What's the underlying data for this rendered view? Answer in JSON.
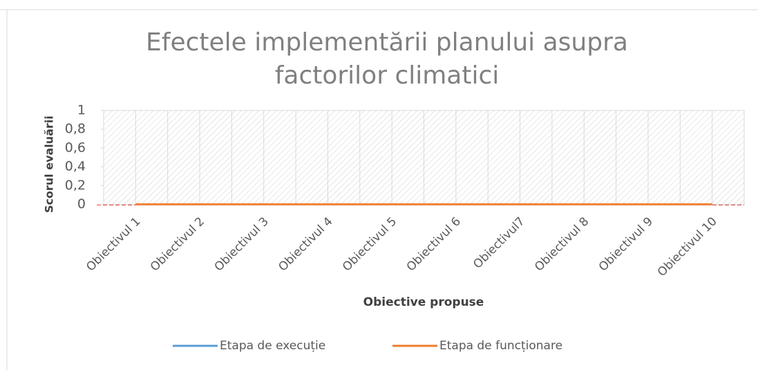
{
  "chart_data": {
    "type": "line",
    "title": "Efectele implementării planului asupra factorilor climatici",
    "xlabel": "Obiective propuse",
    "ylabel": "Scorul evaluării",
    "categories": [
      "Obiectivul 1",
      "Obiectivul 2",
      "Obiectivul 3",
      "Obiectivul 4",
      "Obiectivul 5",
      "Obiectivul 6",
      "Obiectivul7",
      "Obiectivul 8",
      "Obiectivul 9",
      "Obiectivul 10"
    ],
    "series": [
      {
        "name": "Etapa de execuție",
        "color": "#5b9bd5",
        "values": [
          0,
          0,
          0,
          0,
          0,
          0,
          0,
          0,
          0,
          0
        ]
      },
      {
        "name": "Etapa de funcționare",
        "color": "#ed7d31",
        "values": [
          0,
          0,
          0,
          0,
          0,
          0,
          0,
          0,
          0,
          0
        ]
      }
    ],
    "ylim": [
      0,
      1
    ],
    "yticks": [
      0,
      {
        "value": 0.2,
        "label": "0,2"
      },
      {
        "value": 0.4,
        "label": "0,4"
      },
      {
        "value": 0.6,
        "label": "0,6"
      },
      {
        "value": 0.8,
        "label": "0,8"
      },
      1
    ],
    "legend": "bottom"
  }
}
